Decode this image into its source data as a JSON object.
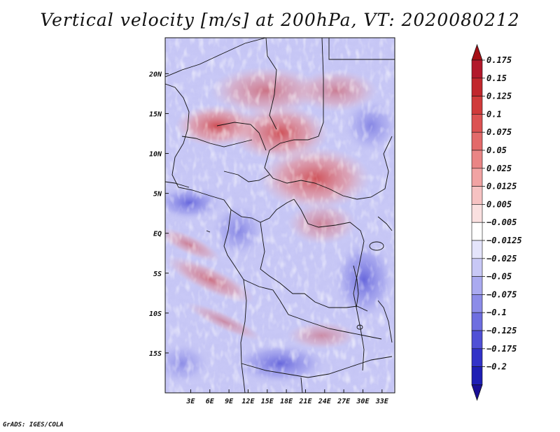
{
  "title": "Vertical velocity [m/s] at 200hPa, VT: 2020080212",
  "footer": "GrADS: IGES/COLA",
  "map": {
    "lon_range": [
      -1,
      35
    ],
    "lat_range": [
      -20,
      24.5
    ],
    "x_ticks": [
      {
        "lon": 3,
        "label": "3E"
      },
      {
        "lon": 6,
        "label": "6E"
      },
      {
        "lon": 9,
        "label": "9E"
      },
      {
        "lon": 12,
        "label": "12E"
      },
      {
        "lon": 15,
        "label": "15E"
      },
      {
        "lon": 18,
        "label": "18E"
      },
      {
        "lon": 21,
        "label": "21E"
      },
      {
        "lon": 24,
        "label": "24E"
      },
      {
        "lon": 27,
        "label": "27E"
      },
      {
        "lon": 30,
        "label": "30E"
      },
      {
        "lon": 33,
        "label": "33E"
      }
    ],
    "y_ticks": [
      {
        "lat": 20,
        "label": "20N"
      },
      {
        "lat": 15,
        "label": "15N"
      },
      {
        "lat": 10,
        "label": "10N"
      },
      {
        "lat": 5,
        "label": "5N"
      },
      {
        "lat": 0,
        "label": "EQ"
      },
      {
        "lat": -5,
        "label": "5S"
      },
      {
        "lat": -10,
        "label": "10S"
      },
      {
        "lat": -15,
        "label": "15S"
      }
    ]
  },
  "colorbar": {
    "levels": [
      {
        "label": "0.175",
        "color": "#b2182b"
      },
      {
        "label": "0.15",
        "color": "#c1272d"
      },
      {
        "label": "0.125",
        "color": "#d03a3a"
      },
      {
        "label": "0.1",
        "color": "#dc5252"
      },
      {
        "label": "0.075",
        "color": "#e36a6a"
      },
      {
        "label": "0.05",
        "color": "#ea8585"
      },
      {
        "label": "0.025",
        "color": "#f1a3a3"
      },
      {
        "label": "0.0125",
        "color": "#f6c2c2"
      },
      {
        "label": "0.005",
        "color": "#fae0e0"
      },
      {
        "label": "−0.005",
        "color": "#ffffff"
      },
      {
        "label": "−0.0125",
        "color": "#e4e4fb"
      },
      {
        "label": "−0.025",
        "color": "#c8c8f6"
      },
      {
        "label": "−0.05",
        "color": "#aaaaf0"
      },
      {
        "label": "−0.075",
        "color": "#8c8ce8"
      },
      {
        "label": "−0.1",
        "color": "#6e6ee0"
      },
      {
        "label": "−0.125",
        "color": "#5050d6"
      },
      {
        "label": "−0.175",
        "color": "#3232c8"
      },
      {
        "label": "−0.2",
        "color": "#1e1eb4"
      }
    ],
    "top_color": "#a50f15",
    "bottom_color": "#1a0f96"
  }
}
